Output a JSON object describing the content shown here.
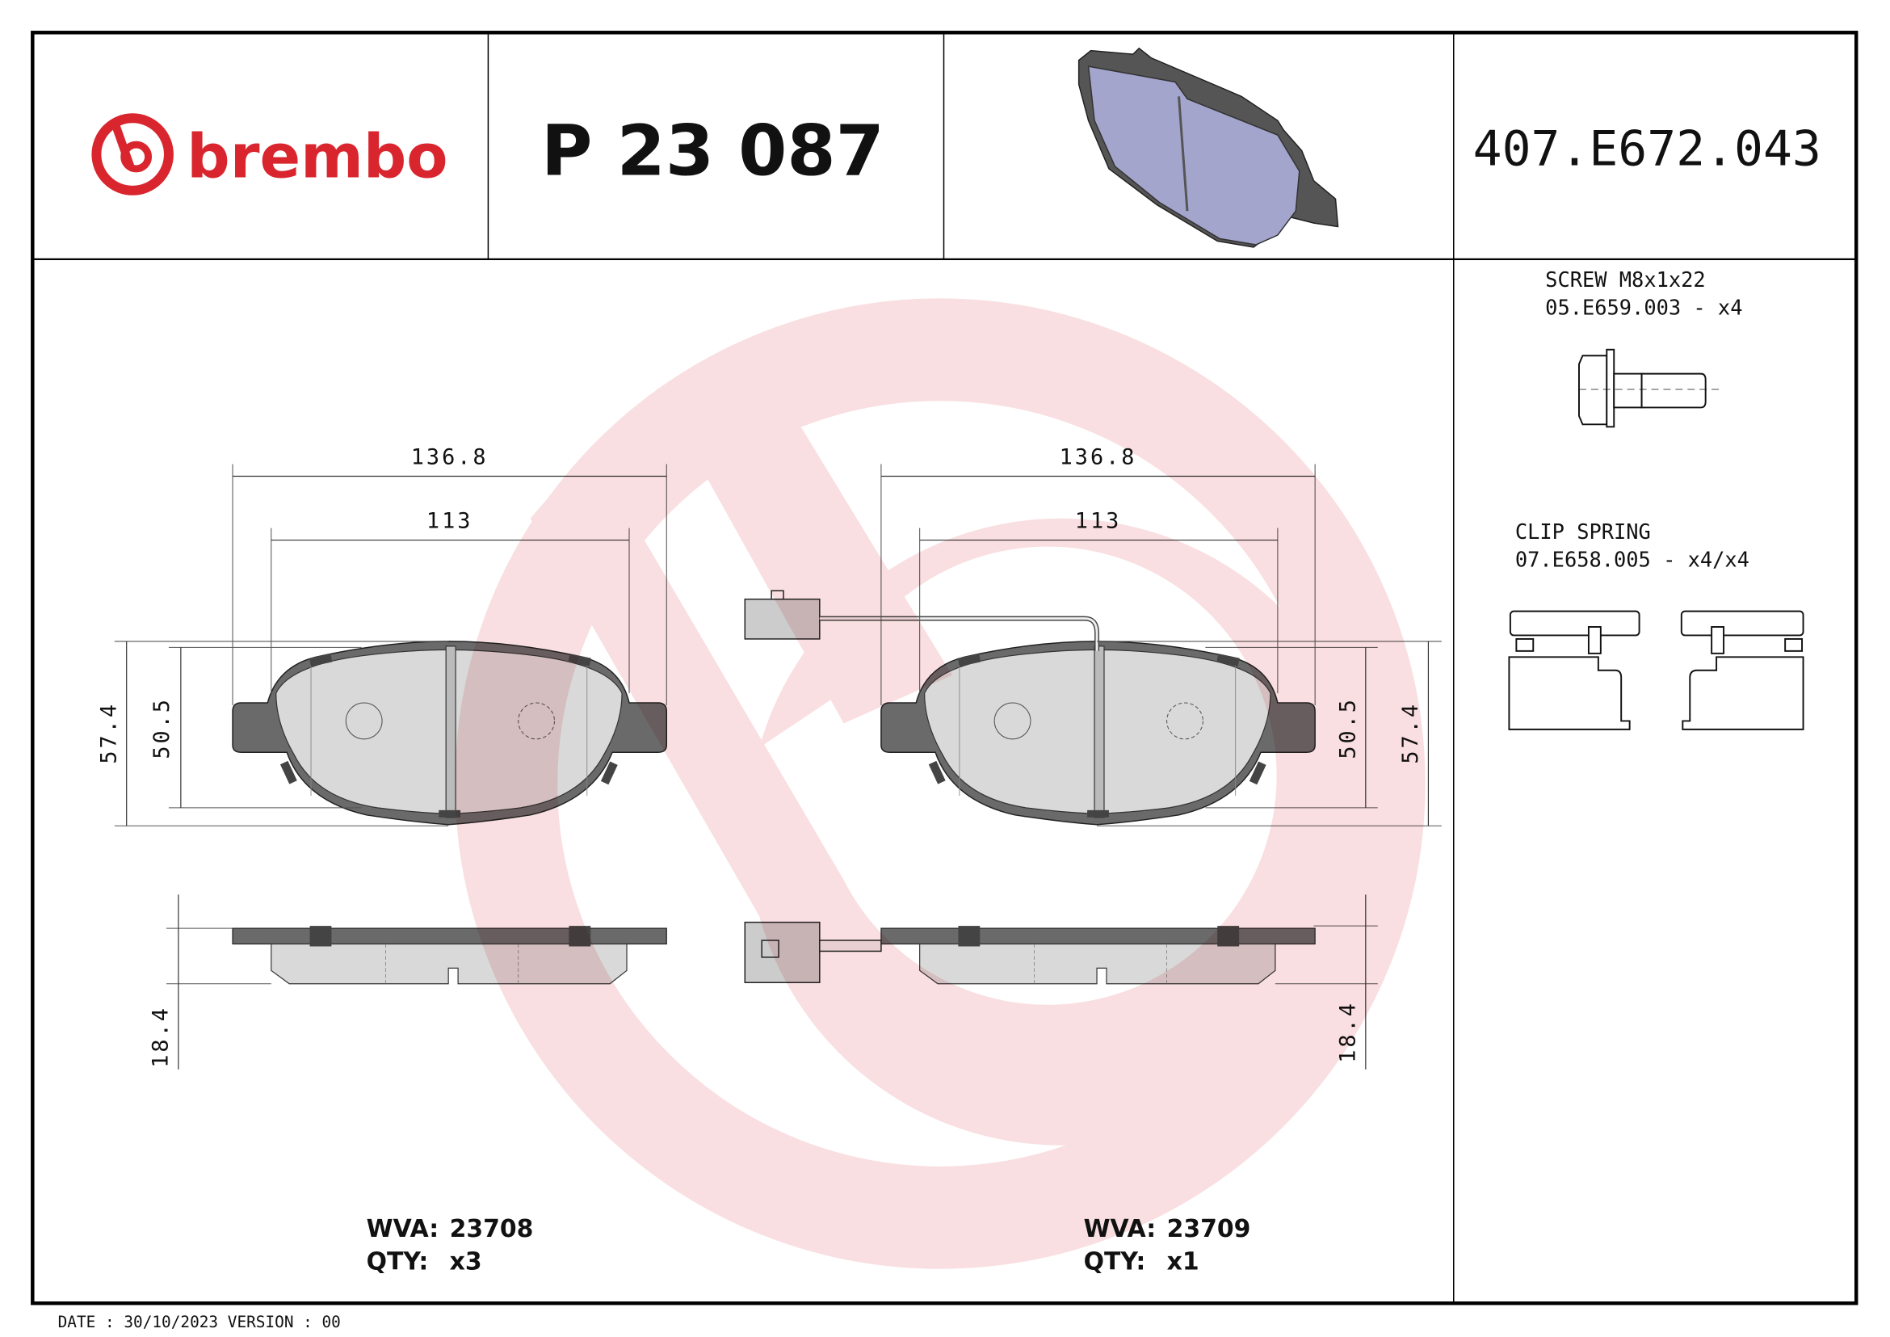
{
  "header": {
    "logo_text": "brembo",
    "part_number": "P 23 087",
    "reference_code": "407.E672.043"
  },
  "accessories": [
    {
      "name": "SCREW M8x1x22",
      "code_qty": "05.E659.003 - x4",
      "icon": "screw-icon"
    },
    {
      "name": "CLIP SPRING",
      "code_qty": "07.E658.005 - x4/x4",
      "icon": "clip-spring-icon"
    }
  ],
  "dimensions": {
    "width_overall": "136.8",
    "width_friction": "113",
    "height_overall": "57.4",
    "height_friction": "50.5",
    "thickness": "18.4"
  },
  "pads": [
    {
      "wva_label": "WVA:",
      "wva": "23708",
      "qty_label": "QTY:",
      "qty": "x3",
      "wear_sensor": false
    },
    {
      "wva_label": "WVA:",
      "wva": "23709",
      "qty_label": "QTY:",
      "qty": "x1",
      "wear_sensor": true
    }
  ],
  "footer": {
    "date_version": "DATE : 30/10/2023 VERSION : 00"
  },
  "colors": {
    "brand_red": "#d9262e",
    "watermark": "#f9dcde",
    "pad_image": "#a3a5cc"
  }
}
